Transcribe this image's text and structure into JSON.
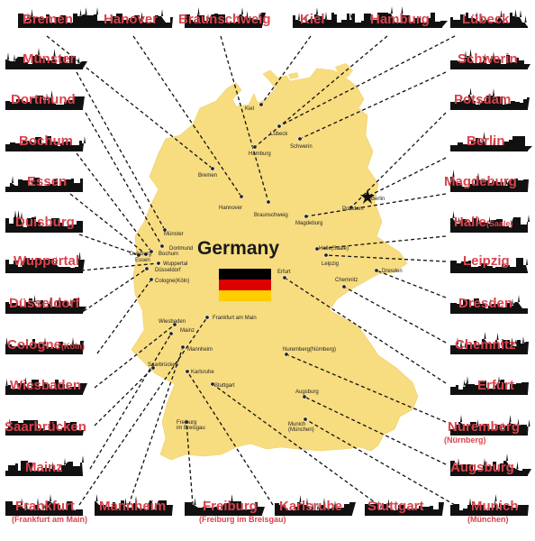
{
  "map": {
    "title": "Germany",
    "fill_color": "#f7dc80",
    "label_color": "#d9434d",
    "flag": [
      "#000000",
      "#dd0000",
      "#ffce00"
    ]
  },
  "edge_cities": [
    {
      "id": "bremen",
      "name": "Bremen"
    },
    {
      "id": "hanover",
      "name": "Hanover"
    },
    {
      "id": "braunschweig",
      "name": "Braunschweig"
    },
    {
      "id": "kiel",
      "name": "Kiel"
    },
    {
      "id": "hamburg",
      "name": "Hamburg"
    },
    {
      "id": "lubeck",
      "name": "Lübeck"
    },
    {
      "id": "munster",
      "name": "Münster"
    },
    {
      "id": "schwerin",
      "name": "Schwerin"
    },
    {
      "id": "dortmund",
      "name": "Dortmund"
    },
    {
      "id": "potsdam",
      "name": "Potsdam"
    },
    {
      "id": "bochum",
      "name": "Bochum"
    },
    {
      "id": "berlin",
      "name": "Berlin"
    },
    {
      "id": "essen",
      "name": "Essen"
    },
    {
      "id": "magdeburg",
      "name": "Magdeburg"
    },
    {
      "id": "duisburg",
      "name": "Duisburg"
    },
    {
      "id": "halle",
      "name": "Halle",
      "sub": "(Saale)"
    },
    {
      "id": "wuppertal",
      "name": "Wuppertal"
    },
    {
      "id": "leipzig",
      "name": "Leipzig"
    },
    {
      "id": "dusseldorf",
      "name": "Düsseldorf"
    },
    {
      "id": "dresden",
      "name": "Dresden"
    },
    {
      "id": "cologne",
      "name": "Cologne",
      "sub": "(Köln)"
    },
    {
      "id": "chemnitz",
      "name": "Chemnitz"
    },
    {
      "id": "wiesbaden",
      "name": "Wiesbaden"
    },
    {
      "id": "erfurt",
      "name": "Erfurt"
    },
    {
      "id": "saarbrucken",
      "name": "Saarbrücken"
    },
    {
      "id": "nuremberg",
      "name": "Nuremberg",
      "subline": "(Nürnberg)"
    },
    {
      "id": "mainz",
      "name": "Mainz"
    },
    {
      "id": "augsburg",
      "name": "Augsburg"
    },
    {
      "id": "frankfurt",
      "name": "Frankfurt",
      "subline": "(Frankfurt am Main)"
    },
    {
      "id": "mannheim",
      "name": "Mannheim"
    },
    {
      "id": "freiburg",
      "name": "Freiburg",
      "subline": "(Freiburg im Breisgau)"
    },
    {
      "id": "karlsruhe",
      "name": "Karlsruhe"
    },
    {
      "id": "stuttgart",
      "name": "Stuttgart"
    },
    {
      "id": "munich",
      "name": "Munich",
      "subline": "(München)"
    }
  ],
  "map_labels": [
    {
      "id": "kiel",
      "text": "Kiel"
    },
    {
      "id": "lubeck",
      "text": "Lübeck"
    },
    {
      "id": "schwerin",
      "text": "Schwerin"
    },
    {
      "id": "hamburg",
      "text": "Hamburg"
    },
    {
      "id": "bremen",
      "text": "Bremen"
    },
    {
      "id": "hannover",
      "text": "Hannover"
    },
    {
      "id": "braunschweig",
      "text": "Braunschweig"
    },
    {
      "id": "magdeburg",
      "text": "Magdeburg"
    },
    {
      "id": "berlin",
      "text": "Berlin"
    },
    {
      "id": "potsdam",
      "text": "Potsdam"
    },
    {
      "id": "munster",
      "text": "Münster"
    },
    {
      "id": "dortmund",
      "text": "Dortmund"
    },
    {
      "id": "bochum",
      "text": "Bochum"
    },
    {
      "id": "essen",
      "text": "Essen"
    },
    {
      "id": "duisburg",
      "text": "Duisburg"
    },
    {
      "id": "wuppertal",
      "text": "Wuppertal"
    },
    {
      "id": "dusseldorf",
      "text": "Düsseldorf"
    },
    {
      "id": "cologne",
      "text": "Cologne(Köln)"
    },
    {
      "id": "halle",
      "text": "Halle(Saale)"
    },
    {
      "id": "leipzig",
      "text": "Leipzig"
    },
    {
      "id": "dresden",
      "text": "Dresden"
    },
    {
      "id": "chemnitz",
      "text": "Chemnitz"
    },
    {
      "id": "erfurt",
      "text": "Erfurt"
    },
    {
      "id": "wiesbaden",
      "text": "Wiesbaden"
    },
    {
      "id": "mainz",
      "text": "Mainz"
    },
    {
      "id": "frankfurt",
      "text": "Frankfurt am Main"
    },
    {
      "id": "mannheim",
      "text": "Mannheim"
    },
    {
      "id": "saarbrucken",
      "text": "Saarbrücken"
    },
    {
      "id": "karlsruhe",
      "text": "Karlsruhe"
    },
    {
      "id": "stuttgart",
      "text": "Stuttgart"
    },
    {
      "id": "nuremberg",
      "text": "Nuremberg(Nürnberg)"
    },
    {
      "id": "augsburg",
      "text": "Augsburg"
    },
    {
      "id": "munich",
      "text": "Munich\n(München)"
    },
    {
      "id": "freiburg",
      "text": "Freiburg\nim Breisgau"
    }
  ]
}
